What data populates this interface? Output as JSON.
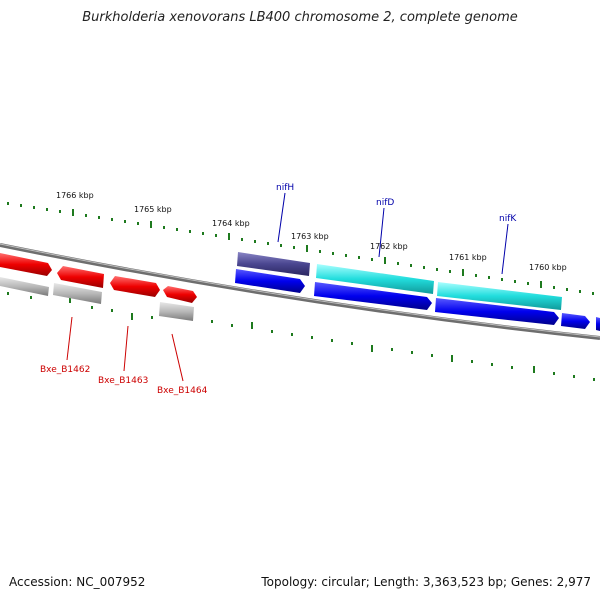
{
  "title": "Burkholderia xenovorans LB400 chromosome 2, complete genome",
  "footer": {
    "accession": "Accession: NC_007952",
    "summary": "Topology: circular; Length: 3,363,523 bp; Genes: 2,977"
  },
  "scale_labels": [
    {
      "text": "1766 kbp"
    },
    {
      "text": "1765 kbp"
    },
    {
      "text": "1764 kbp"
    },
    {
      "text": "1763 kbp"
    },
    {
      "text": "1762 kbp"
    },
    {
      "text": "1761 kbp"
    },
    {
      "text": "1760 kbp"
    }
  ],
  "gene_labels": [
    {
      "text": "nifH",
      "color": "#0000aa"
    },
    {
      "text": "nifD",
      "color": "#0000aa"
    },
    {
      "text": "nifK",
      "color": "#0000aa"
    },
    {
      "text": "Bxe_B1462",
      "color": "#cc0000"
    },
    {
      "text": "Bxe_B1463",
      "color": "#cc0000"
    },
    {
      "text": "Bxe_B1464",
      "color": "#cc0000"
    }
  ],
  "colors": {
    "backbone": "#7a7a7a",
    "tick": "#1e7a1e",
    "cds_blue": "#0000ee",
    "cds_red": "#ee0000",
    "cds_cyan": "#22dddd",
    "cds_slate": "#4a4690",
    "cds_grey": "#b8b8b8"
  }
}
